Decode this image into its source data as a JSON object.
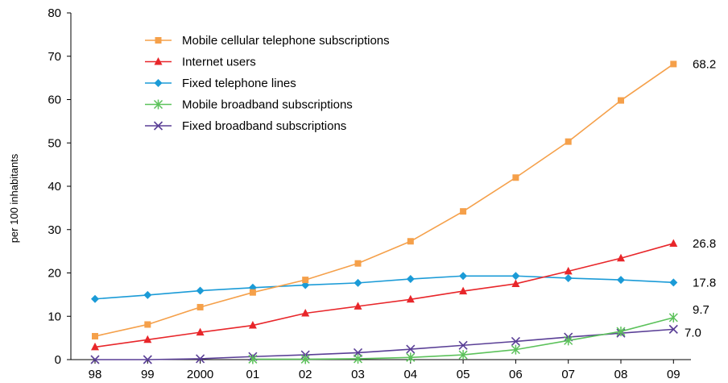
{
  "chart_data": {
    "type": "line",
    "ylabel": "per 100 inhabitants",
    "xlabel": "",
    "ylim": [
      0,
      80
    ],
    "yticks": [
      0,
      10,
      20,
      30,
      40,
      50,
      60,
      70,
      80
    ],
    "categories": [
      "98",
      "99",
      "2000",
      "01",
      "02",
      "03",
      "04",
      "05",
      "06",
      "07",
      "08",
      "09"
    ],
    "grid": false,
    "legend_position": "top-left",
    "series": [
      {
        "name": "Mobile cellular telephone subscriptions",
        "marker": "square",
        "color": "#f5a04a",
        "values": [
          5.4,
          8.1,
          12.1,
          15.5,
          18.4,
          22.2,
          27.3,
          34.2,
          42.0,
          50.3,
          59.8,
          68.2
        ],
        "end_label": "68.2"
      },
      {
        "name": "Internet users",
        "marker": "triangle",
        "color": "#e8262a",
        "values": [
          2.9,
          4.6,
          6.3,
          7.9,
          10.7,
          12.3,
          13.9,
          15.8,
          17.5,
          20.4,
          23.4,
          26.8
        ],
        "end_label": "26.8"
      },
      {
        "name": "Fixed telephone lines",
        "marker": "diamond",
        "color": "#1b9bd7",
        "values": [
          14.0,
          14.9,
          15.9,
          16.6,
          17.2,
          17.7,
          18.6,
          19.3,
          19.3,
          18.8,
          18.4,
          17.8
        ],
        "end_label": "17.8"
      },
      {
        "name": "Mobile broadband subscriptions",
        "marker": "x-star",
        "color": "#5cc25b",
        "values": [
          null,
          null,
          null,
          0.1,
          0.1,
          0.2,
          0.5,
          1.1,
          2.3,
          4.4,
          6.5,
          9.7
        ],
        "end_label": "9.7"
      },
      {
        "name": "Fixed broadband subscriptions",
        "marker": "x",
        "color": "#5a3f96",
        "values": [
          0.0,
          0.0,
          0.2,
          0.7,
          1.1,
          1.6,
          2.4,
          3.3,
          4.2,
          5.2,
          6.1,
          7.0
        ],
        "end_label": "7.0"
      }
    ]
  }
}
